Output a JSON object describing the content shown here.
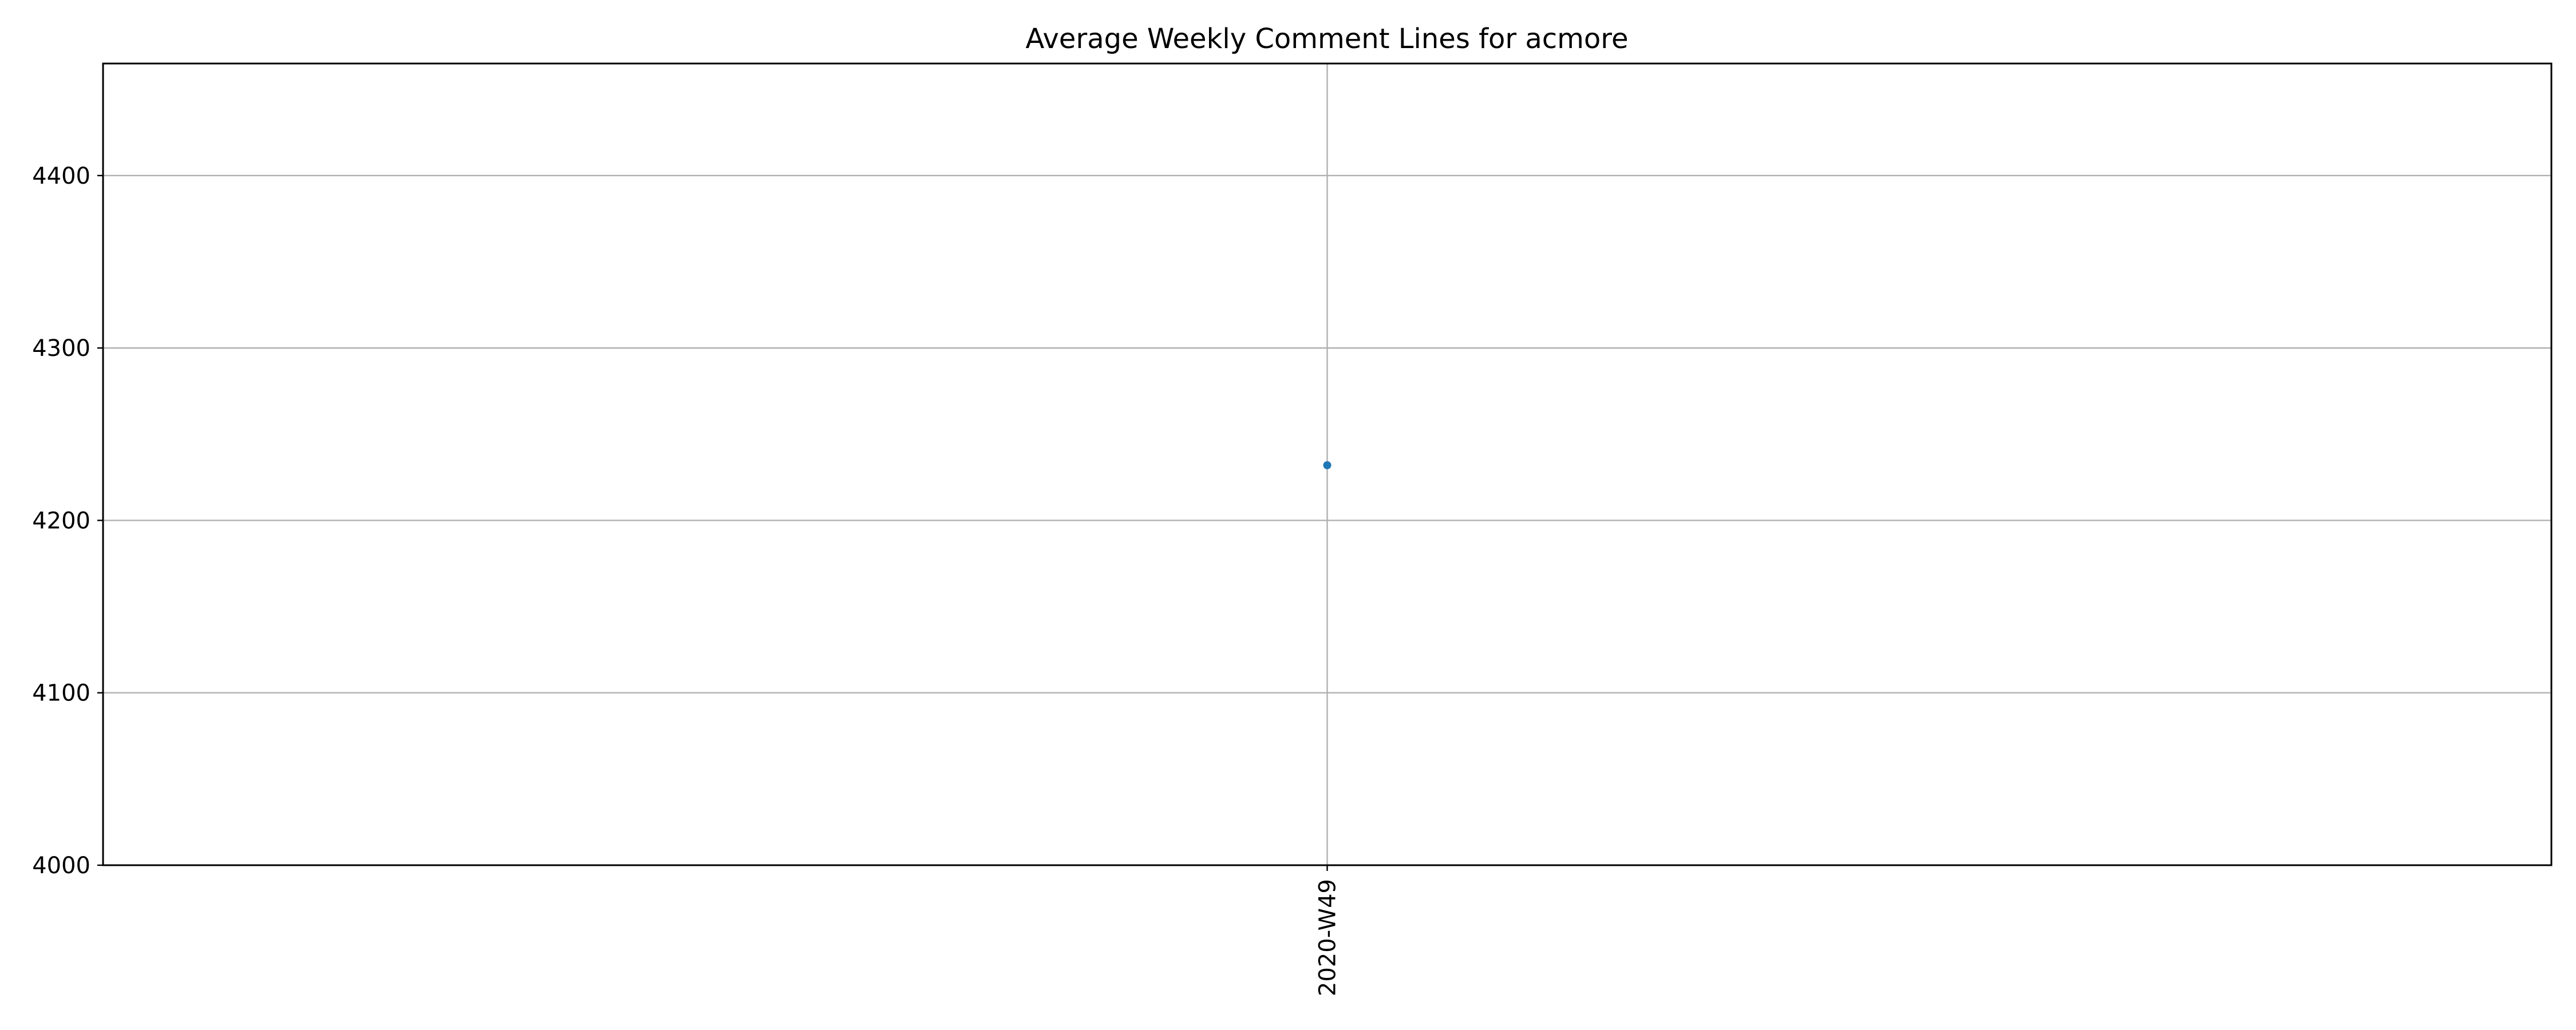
{
  "chart_data": {
    "type": "line",
    "title": "Average Weekly Comment Lines for acmore",
    "xlabel": "",
    "ylabel": "",
    "categories": [
      "2020-W49"
    ],
    "series": [
      {
        "values": [
          4232
        ],
        "color": "#1f77b4"
      }
    ],
    "ylim": [
      4000,
      4465
    ],
    "yticks": [
      4000,
      4100,
      4200,
      4300,
      4400
    ],
    "grid": true,
    "legend": "none"
  }
}
